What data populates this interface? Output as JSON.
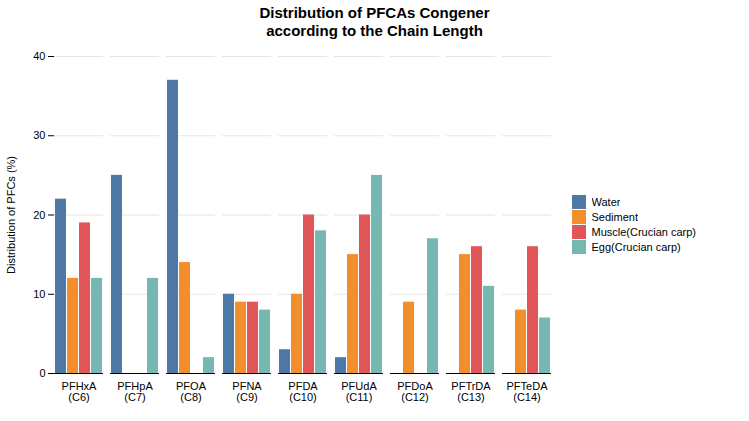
{
  "chart_data": {
    "type": "bar",
    "title": "Distribution of PFCAs Congener\naccording to the Chain Length",
    "ylabel": "Distribution of PFCs (%)",
    "categories": [
      "PFHxA\n(C6)",
      "PFHpA\n(C7)",
      "PFOA\n(C8)",
      "PFNA\n(C9)",
      "PFDA\n(C10)",
      "PFUdA\n(C11)",
      "PFDoA\n(C12)",
      "PFTrDA\n(C13)",
      "PFTeDA\n(C14)"
    ],
    "series": [
      {
        "name": "Water",
        "values": [
          22,
          25,
          37,
          10,
          3,
          2,
          0,
          0,
          0
        ]
      },
      {
        "name": "Sediment",
        "values": [
          12,
          0,
          14,
          9,
          10,
          15,
          9,
          15,
          8
        ]
      },
      {
        "name": "Muscle(Crucian carp)",
        "values": [
          19,
          0,
          0,
          9,
          20,
          20,
          0,
          16,
          16
        ]
      },
      {
        "name": "Egg(Crucian carp)",
        "values": [
          12,
          12,
          2,
          8,
          18,
          25,
          17,
          11,
          7
        ]
      }
    ],
    "ylim": [
      0,
      40
    ],
    "yticks": [
      0,
      10,
      20,
      30,
      40
    ],
    "grid": true,
    "legend": "right"
  }
}
